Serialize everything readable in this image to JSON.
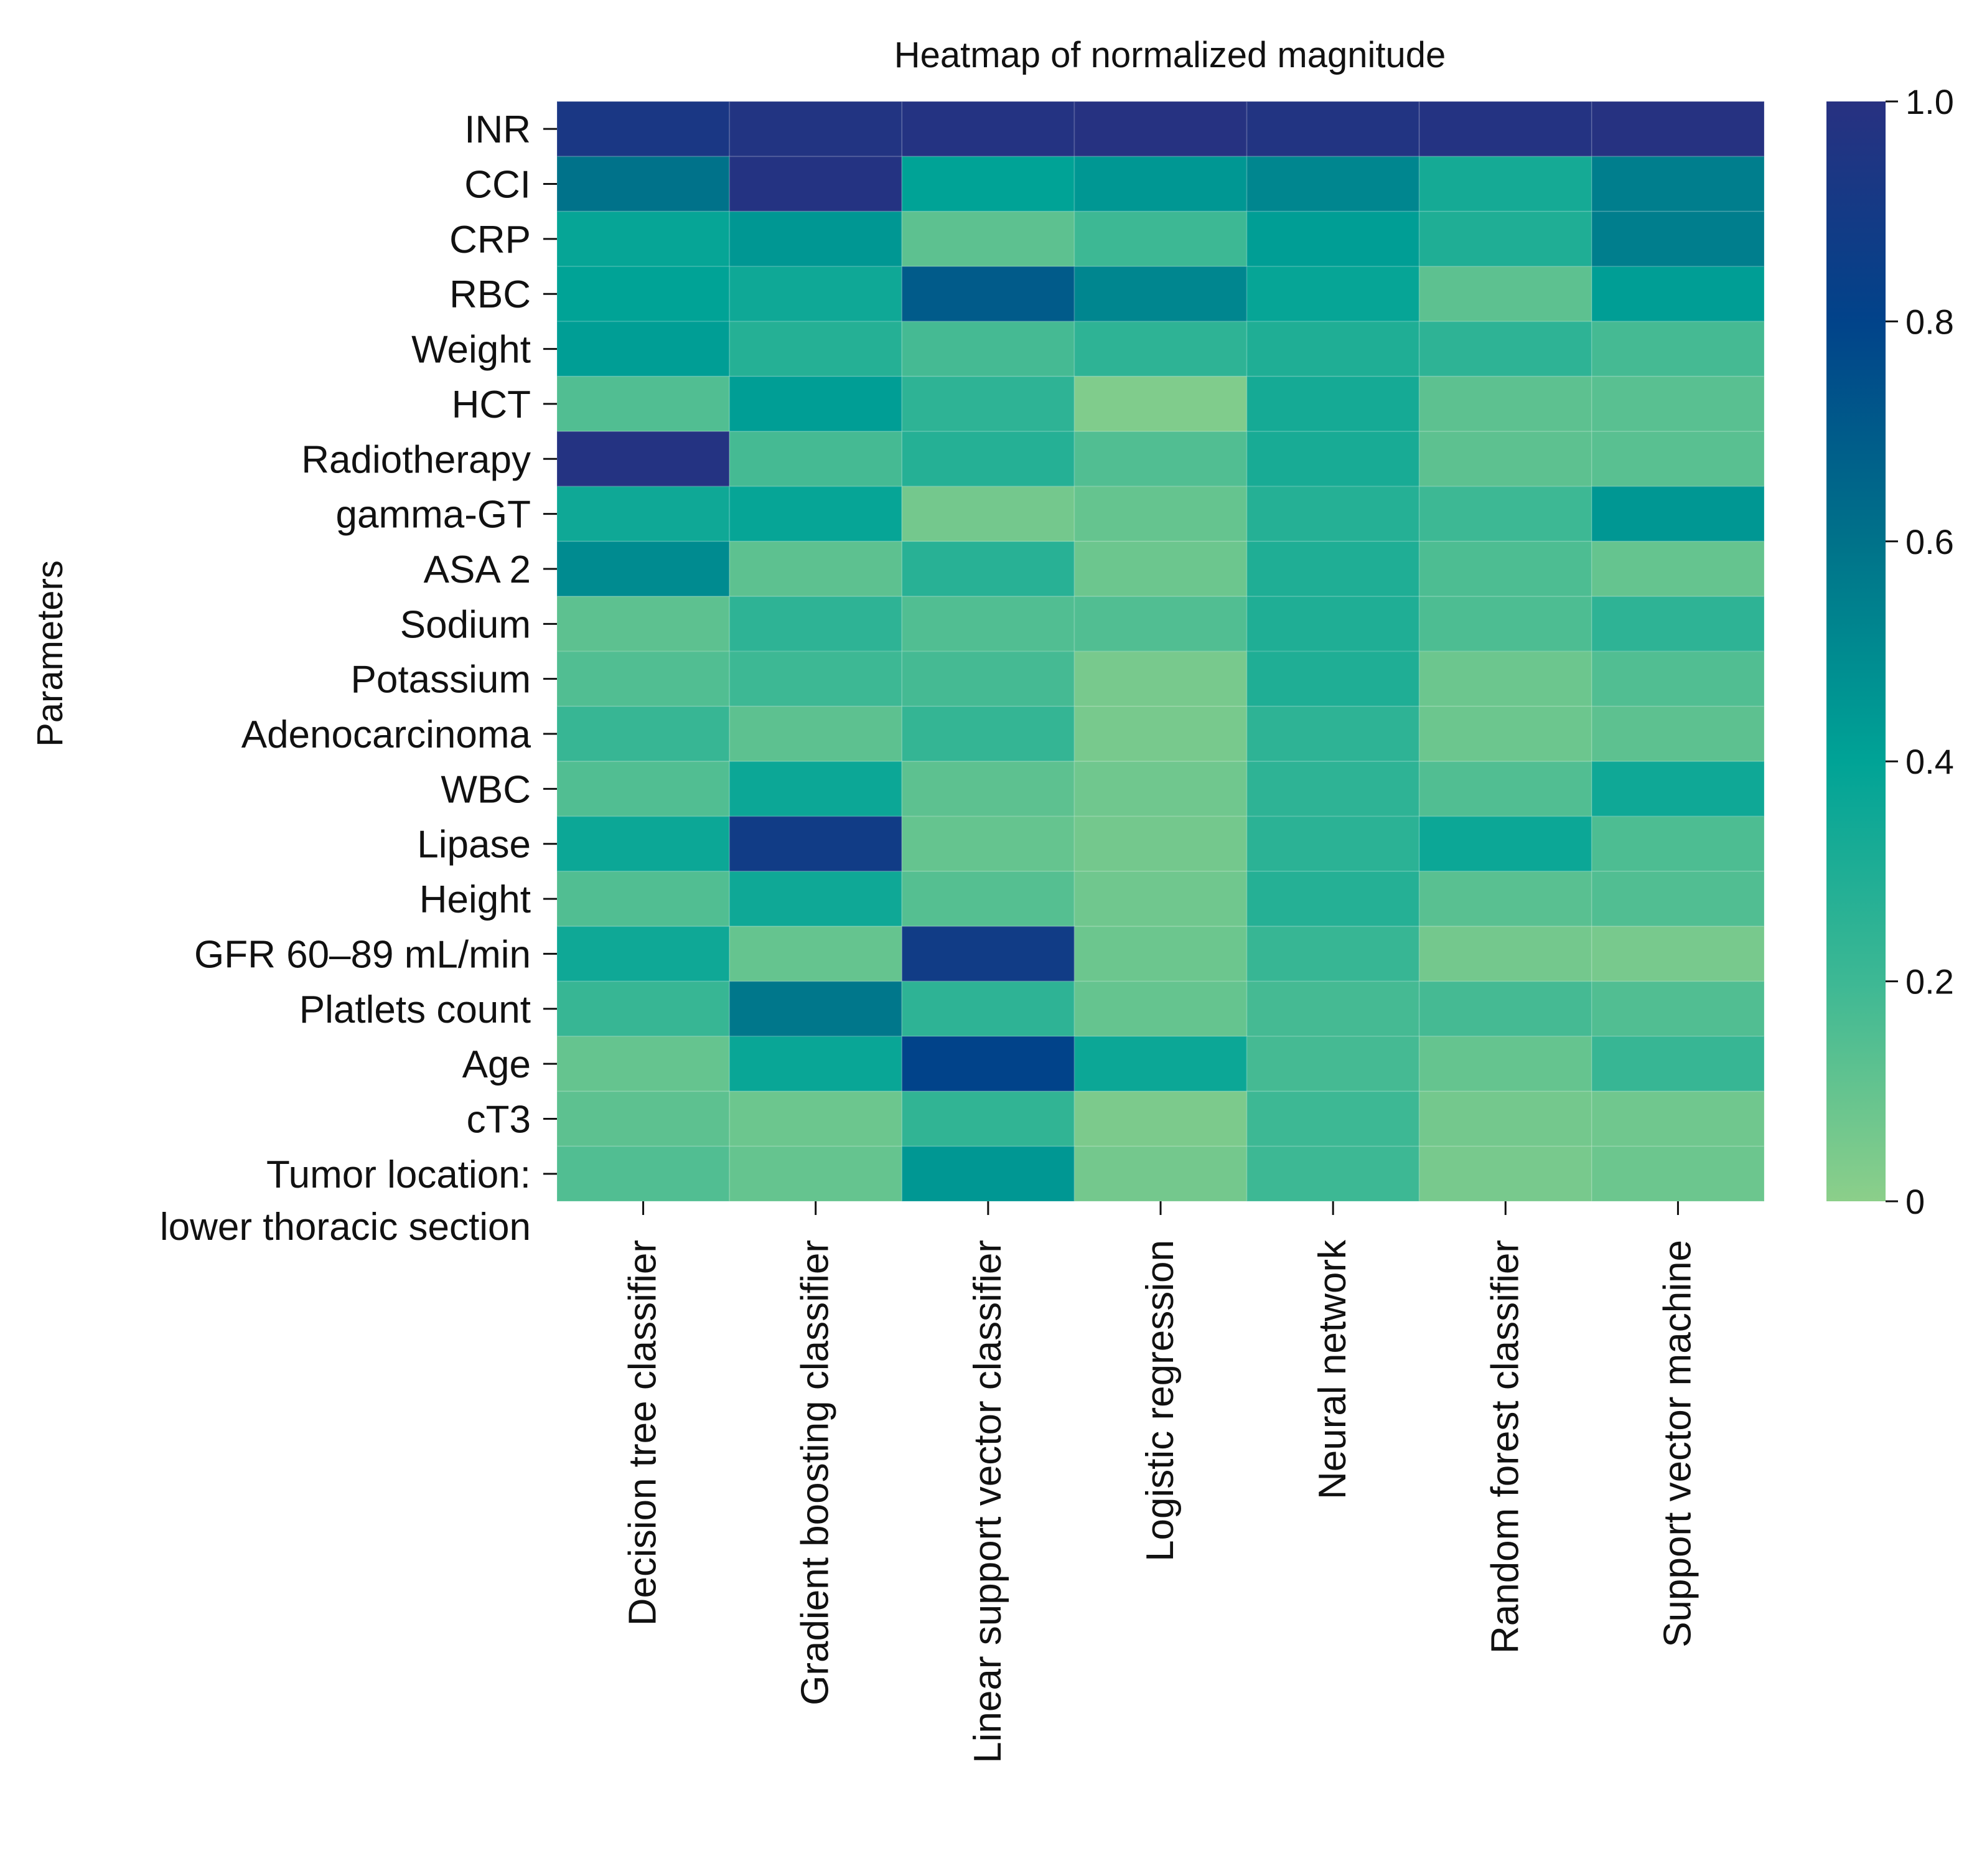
{
  "chart_data": {
    "type": "heatmap",
    "title": "Heatmap of normalized magnitude",
    "ylabel": "Parameters",
    "xlabel": "",
    "columns": [
      "Decision tree classifier",
      "Gradient boosting classifier",
      "Linear support vector classifier",
      "Logistic regression",
      "Neural network",
      "Random forest classifier",
      "Support vector machine"
    ],
    "rows": [
      [
        "INR"
      ],
      [
        "CCI"
      ],
      [
        "CRP"
      ],
      [
        "RBC"
      ],
      [
        "Weight"
      ],
      [
        "HCT"
      ],
      [
        "Radiotherapy"
      ],
      [
        "gamma-GT"
      ],
      [
        "ASA 2"
      ],
      [
        "Sodium"
      ],
      [
        "Potassium"
      ],
      [
        "Adenocarcinoma"
      ],
      [
        "WBC"
      ],
      [
        "Lipase"
      ],
      [
        "Height"
      ],
      [
        "GFR 60–89 mL/min"
      ],
      [
        "Platlets count"
      ],
      [
        "Age"
      ],
      [
        "cT3"
      ],
      [
        "Tumor location:",
        "lower thoracic section"
      ]
    ],
    "values": [
      [
        0.93,
        0.97,
        0.98,
        0.99,
        0.97,
        0.98,
        0.99
      ],
      [
        0.6,
        0.98,
        0.4,
        0.45,
        0.52,
        0.33,
        0.55
      ],
      [
        0.38,
        0.45,
        0.12,
        0.2,
        0.42,
        0.3,
        0.55
      ],
      [
        0.4,
        0.35,
        0.7,
        0.52,
        0.38,
        0.12,
        0.42
      ],
      [
        0.42,
        0.28,
        0.18,
        0.25,
        0.3,
        0.25,
        0.18
      ],
      [
        0.15,
        0.42,
        0.25,
        0.03,
        0.33,
        0.12,
        0.13
      ],
      [
        0.98,
        0.18,
        0.28,
        0.15,
        0.32,
        0.12,
        0.13
      ],
      [
        0.35,
        0.38,
        0.06,
        0.1,
        0.28,
        0.2,
        0.45
      ],
      [
        0.5,
        0.12,
        0.27,
        0.08,
        0.3,
        0.16,
        0.1
      ],
      [
        0.12,
        0.25,
        0.15,
        0.15,
        0.3,
        0.16,
        0.25
      ],
      [
        0.15,
        0.2,
        0.18,
        0.05,
        0.3,
        0.08,
        0.15
      ],
      [
        0.22,
        0.12,
        0.23,
        0.05,
        0.25,
        0.08,
        0.12
      ],
      [
        0.15,
        0.36,
        0.12,
        0.07,
        0.25,
        0.15,
        0.35
      ],
      [
        0.36,
        0.88,
        0.1,
        0.06,
        0.26,
        0.36,
        0.16
      ],
      [
        0.15,
        0.35,
        0.14,
        0.07,
        0.28,
        0.13,
        0.15
      ],
      [
        0.35,
        0.1,
        0.88,
        0.08,
        0.22,
        0.06,
        0.05
      ],
      [
        0.22,
        0.58,
        0.25,
        0.1,
        0.18,
        0.18,
        0.15
      ],
      [
        0.1,
        0.37,
        0.8,
        0.36,
        0.18,
        0.1,
        0.22
      ],
      [
        0.12,
        0.08,
        0.24,
        0.04,
        0.2,
        0.06,
        0.07
      ],
      [
        0.15,
        0.1,
        0.45,
        0.06,
        0.2,
        0.05,
        0.08
      ]
    ],
    "colorbar": {
      "range": [
        0,
        1
      ],
      "ticks": [
        "0",
        "0.2",
        "0.4",
        "0.6",
        "0.8",
        "1.0"
      ],
      "tick_values": [
        0,
        0.2,
        0.4,
        0.6,
        0.8,
        1.0
      ]
    },
    "colormap": [
      "#8ccf8a",
      "#3db894",
      "#00a396",
      "#00728a",
      "#01438a",
      "#283181"
    ]
  }
}
